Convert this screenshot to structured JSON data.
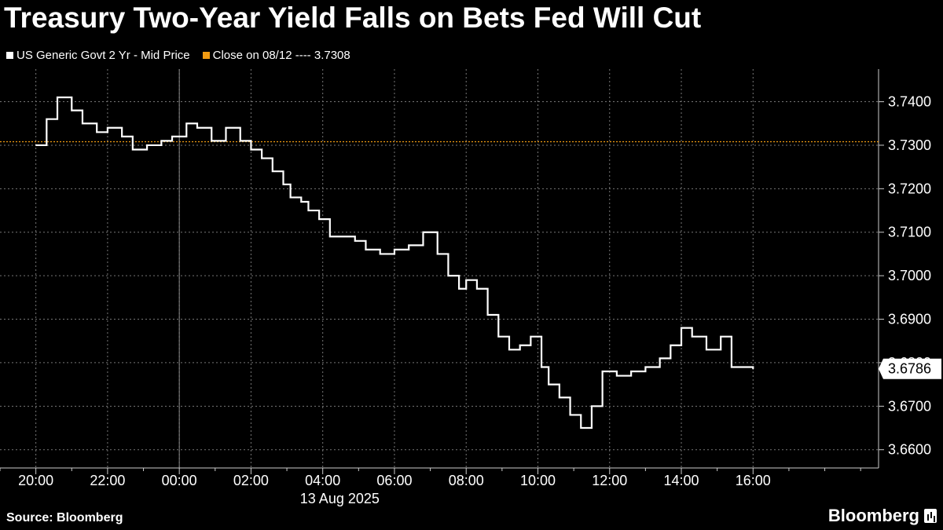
{
  "title": "Treasury Two-Year Yield Falls on Bets Fed Will Cut",
  "legend": [
    {
      "label": "US Generic Govt 2 Yr - Mid Price",
      "color": "#ffffff"
    },
    {
      "label": "Close on 08/12 ---- 3.7308",
      "color": "#f39c12"
    }
  ],
  "source": "Source: Bloomberg",
  "logo": "Bloomberg",
  "chart_data": {
    "type": "line",
    "title": "Treasury Two-Year Yield Falls on Bets Fed Will Cut",
    "xlabel": "13 Aug 2025",
    "ylabel": "",
    "x_ticks": [
      "20:00",
      "22:00",
      "00:00",
      "02:00",
      "04:00",
      "06:00",
      "08:00",
      "10:00",
      "12:00",
      "14:00",
      "16:00"
    ],
    "y_ticks": [
      "3.6600",
      "3.6700",
      "3.6800",
      "3.6900",
      "3.7000",
      "3.7100",
      "3.7200",
      "3.7300",
      "3.7400"
    ],
    "y_tick_values": [
      3.66,
      3.67,
      3.68,
      3.69,
      3.7,
      3.71,
      3.72,
      3.73,
      3.74
    ],
    "ylim": [
      3.6558,
      3.7475
    ],
    "x_range_hours": [
      -5,
      19.5
    ],
    "grid": true,
    "legend_position": "top-left",
    "reference_line": {
      "label": "Close on 08/12",
      "value": 3.7308,
      "color": "#f39c12"
    },
    "last_value_label": "3.6786",
    "series": [
      {
        "name": "US Generic Govt 2 Yr - Mid Price",
        "color": "#ffffff",
        "x_hours": [
          -4.0,
          -3.7,
          -3.4,
          -3.0,
          -2.7,
          -2.3,
          -2.0,
          -1.6,
          -1.3,
          -0.9,
          -0.5,
          -0.2,
          0.2,
          0.5,
          0.9,
          1.3,
          1.7,
          2.0,
          2.3,
          2.6,
          2.9,
          3.1,
          3.4,
          3.6,
          3.9,
          4.2,
          4.6,
          4.9,
          5.2,
          5.6,
          6.0,
          6.4,
          6.8,
          7.2,
          7.5,
          7.8,
          8.0,
          8.3,
          8.6,
          8.9,
          9.2,
          9.5,
          9.8,
          10.1,
          10.3,
          10.6,
          10.9,
          11.2,
          11.5,
          11.8,
          12.2,
          12.6,
          13.0,
          13.4,
          13.7,
          14.0,
          14.3,
          14.7,
          15.1,
          15.4,
          15.7,
          16.0
        ],
        "values": [
          3.73,
          3.736,
          3.741,
          3.738,
          3.735,
          3.733,
          3.734,
          3.732,
          3.729,
          3.73,
          3.731,
          3.732,
          3.735,
          3.734,
          3.731,
          3.734,
          3.731,
          3.729,
          3.727,
          3.724,
          3.721,
          3.718,
          3.717,
          3.715,
          3.713,
          3.709,
          3.709,
          3.708,
          3.706,
          3.705,
          3.706,
          3.707,
          3.71,
          3.705,
          3.7,
          3.697,
          3.699,
          3.697,
          3.691,
          3.686,
          3.683,
          3.684,
          3.686,
          3.679,
          3.675,
          3.672,
          3.668,
          3.665,
          3.67,
          3.678,
          3.677,
          3.678,
          3.679,
          3.681,
          3.684,
          3.688,
          3.686,
          3.683,
          3.686,
          3.679,
          3.679,
          3.6786
        ]
      }
    ]
  }
}
